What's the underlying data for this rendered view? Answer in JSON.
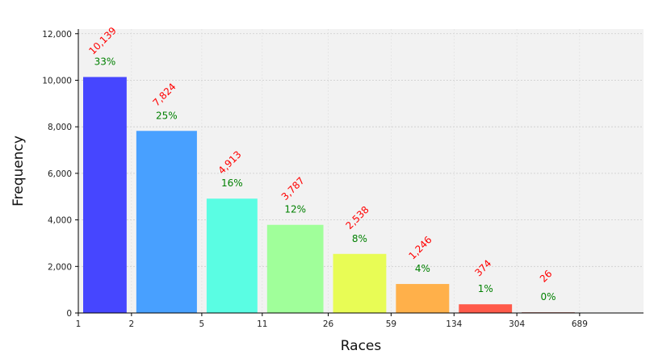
{
  "chart_data": {
    "type": "bar",
    "xlabel": "Races",
    "ylabel": "Frequency",
    "x_tick_labels": [
      "1",
      "2",
      "5",
      "11",
      "26",
      "59",
      "134",
      "304",
      "689"
    ],
    "y_ticks": [
      0,
      2000,
      4000,
      6000,
      8000,
      10000,
      12000
    ],
    "y_tick_labels": [
      "0",
      "2,000",
      "4,000",
      "6,000",
      "8,000",
      "10,000",
      "12,000"
    ],
    "ylim": [
      0,
      12200
    ],
    "grid": true,
    "bins": [
      {
        "from": "1",
        "to": "2",
        "value": 10139,
        "count_label": "10,139",
        "pct_label": "33%",
        "color": "#4646ff"
      },
      {
        "from": "2",
        "to": "5",
        "value": 7824,
        "count_label": "7,824",
        "pct_label": "25%",
        "color": "#48a0ff"
      },
      {
        "from": "5",
        "to": "11",
        "value": 4913,
        "count_label": "4,913",
        "pct_label": "16%",
        "color": "#5afde3"
      },
      {
        "from": "11",
        "to": "26",
        "value": 3787,
        "count_label": "3,787",
        "pct_label": "12%",
        "color": "#a0ff9a"
      },
      {
        "from": "26",
        "to": "59",
        "value": 2538,
        "count_label": "2,538",
        "pct_label": "8%",
        "color": "#e8fc55"
      },
      {
        "from": "59",
        "to": "134",
        "value": 1246,
        "count_label": "1,246",
        "pct_label": "4%",
        "color": "#ffb04a"
      },
      {
        "from": "134",
        "to": "304",
        "value": 374,
        "count_label": "374",
        "pct_label": "1%",
        "color": "#ff5a4a"
      },
      {
        "from": "304",
        "to": "689",
        "value": 26,
        "count_label": "26",
        "pct_label": "0%",
        "color": "#8b1a10"
      }
    ],
    "colors": {
      "plot_background": "#f2f2f2",
      "count_label": "#ff0000",
      "pct_label": "#008000"
    }
  }
}
